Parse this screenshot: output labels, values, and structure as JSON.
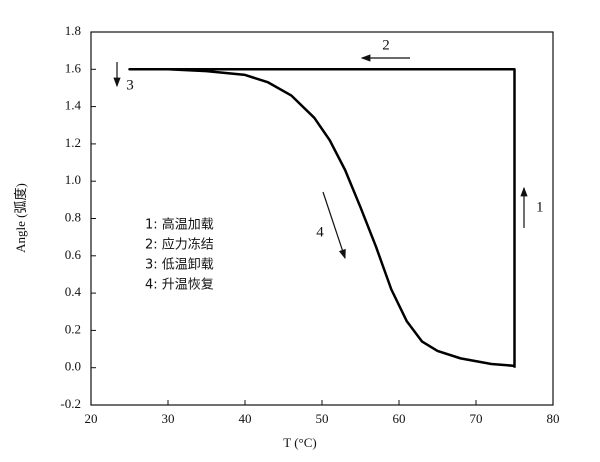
{
  "chart_data": {
    "type": "line",
    "x_label": "T (°C)",
    "y_label": "Angle (弧度)",
    "xlim": [
      20,
      80
    ],
    "xticks": [
      20,
      30,
      40,
      50,
      60,
      70,
      80
    ],
    "ylim": [
      -0.2,
      1.8
    ],
    "yticks": [
      -0.2,
      {
        "value": 0,
        "label": "0.0"
      },
      0.2,
      0.4,
      0.6,
      0.8,
      {
        "value": 1,
        "label": "1.0"
      },
      1.2,
      1.4,
      1.6,
      1.8
    ],
    "series": [
      {
        "color": "#000000",
        "x": [
          75,
          75,
          25,
          30,
          35,
          40,
          43,
          46,
          49,
          51,
          53,
          55,
          57,
          59,
          61,
          63,
          65,
          68,
          72,
          75
        ],
        "values": [
          0,
          1.6,
          1.6,
          1.6,
          1.59,
          1.57,
          1.53,
          1.46,
          1.34,
          1.22,
          1.06,
          0.86,
          0.65,
          0.42,
          0.25,
          0.14,
          0.09,
          0.05,
          0.02,
          0.01
        ]
      }
    ],
    "annotations": [
      "1",
      "2",
      "3",
      "4",
      "1: 高温加载",
      "2: 应力冻结",
      "3: 低温卸载",
      "4: 升温恢复"
    ]
  }
}
